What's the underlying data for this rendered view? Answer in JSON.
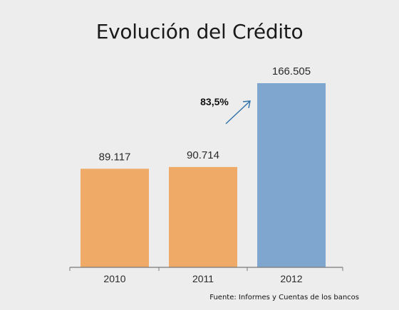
{
  "chart_data": {
    "type": "bar",
    "title": "Evolución del Crédito",
    "categories": [
      "2010",
      "2011",
      "2012"
    ],
    "values": [
      89117,
      90714,
      166505
    ],
    "value_labels": [
      "89.117",
      "90.714",
      "166.505"
    ],
    "bar_colors": [
      "#eeaa66",
      "#eeaa66",
      "#7fa6cf"
    ],
    "ylim": [
      0,
      180000
    ],
    "grid": false,
    "annotation": {
      "text": "83,5%",
      "arrow": "up-right",
      "color": "#2f6fa8"
    },
    "source": "Fuente: Informes y Cuentas de los bancos"
  }
}
